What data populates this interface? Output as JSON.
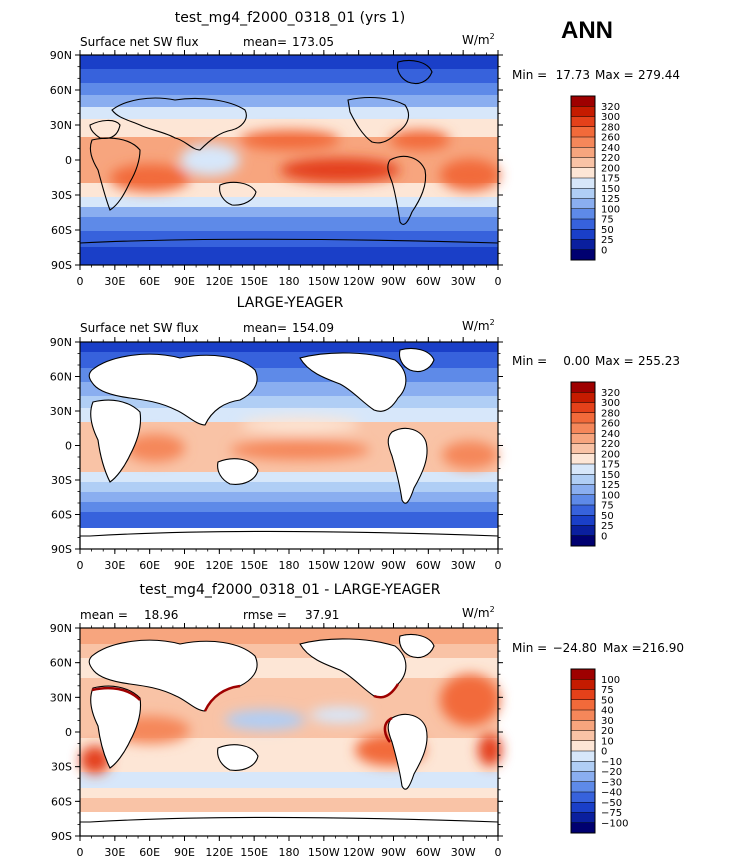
{
  "season": "ANN",
  "chart_data": [
    {
      "type": "heatmap",
      "title": "test_mg4_f2000_0318_01 (yrs 1)",
      "variable": "Surface net SW flux",
      "units": "W/m",
      "units_exp": "2",
      "mean_label": "mean=",
      "mean": "173.05",
      "min_label": "Min =",
      "min": "17.73",
      "max_label": "Max =",
      "max": "279.44",
      "levels": [
        "320",
        "300",
        "280",
        "260",
        "240",
        "220",
        "200",
        "175",
        "150",
        "125",
        "100",
        "75",
        "50",
        "25",
        "0"
      ],
      "colors": [
        "#9e0000",
        "#c51b00",
        "#e4411a",
        "#f26a3a",
        "#f5875a",
        "#f7a57e",
        "#f9c3a6",
        "#fde6d6",
        "#d7e7fa",
        "#b0cef5",
        "#8aaef0",
        "#5e8ae8",
        "#3762dc",
        "#1a3fc8",
        "#0a1f9e",
        "#000070"
      ]
    },
    {
      "type": "heatmap",
      "title": "LARGE-YEAGER",
      "variable": "Surface net SW flux",
      "units": "W/m",
      "units_exp": "2",
      "mean_label": "mean=",
      "mean": "154.09",
      "min_label": "Min =",
      "min": "0.00",
      "max_label": "Max =",
      "max": "255.23",
      "levels": [
        "320",
        "300",
        "280",
        "260",
        "240",
        "220",
        "200",
        "175",
        "150",
        "125",
        "100",
        "75",
        "50",
        "25",
        "0"
      ],
      "colors": [
        "#9e0000",
        "#c51b00",
        "#e4411a",
        "#f26a3a",
        "#f5875a",
        "#f7a57e",
        "#f9c3a6",
        "#fde6d6",
        "#d7e7fa",
        "#b0cef5",
        "#8aaef0",
        "#5e8ae8",
        "#3762dc",
        "#1a3fc8",
        "#0a1f9e",
        "#000070"
      ]
    },
    {
      "type": "heatmap",
      "title": "test_mg4_f2000_0318_01 - LARGE-YEAGER",
      "units": "W/m",
      "units_exp": "2",
      "mean_label": "mean =",
      "mean": "18.96",
      "rmse_label": "rmse =",
      "rmse": "37.91",
      "min_label": "Min =",
      "min": "−24.80",
      "max_label": "Max =",
      "max": "216.90",
      "levels": [
        "100",
        "75",
        "50",
        "40",
        "30",
        "20",
        "10",
        "0",
        "−10",
        "−20",
        "−30",
        "−40",
        "−50",
        "−75",
        "−100"
      ],
      "colors": [
        "#9e0000",
        "#c51b00",
        "#e4411a",
        "#f26a3a",
        "#f5875a",
        "#f7a57e",
        "#f9c3a6",
        "#fde6d6",
        "#d7e7fa",
        "#b0cef5",
        "#8aaef0",
        "#5e8ae8",
        "#3762dc",
        "#1a3fc8",
        "#0a1f9e",
        "#000070"
      ]
    }
  ],
  "axes": {
    "y_ticks": [
      "90N",
      "60N",
      "30N",
      "0",
      "30S",
      "60S",
      "90S"
    ],
    "x_ticks": [
      "0",
      "30E",
      "60E",
      "90E",
      "120E",
      "150E",
      "180",
      "150W",
      "120W",
      "90W",
      "60W",
      "30W",
      "0"
    ]
  }
}
